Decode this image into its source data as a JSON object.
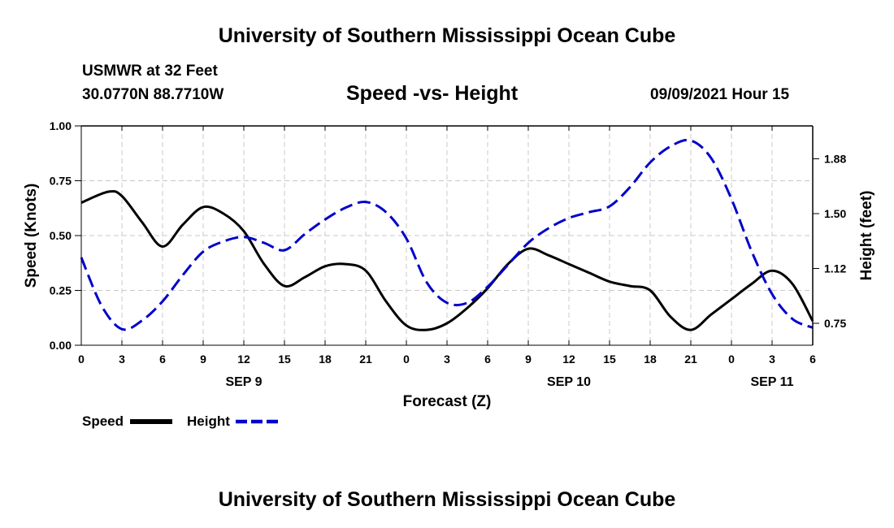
{
  "header": {
    "title_top": "University of Southern Mississippi Ocean Cube",
    "station": "USMWR at 32 Feet",
    "coords": "30.0770N  88.7710W",
    "datetime": "09/09/2021 Hour 15",
    "title_bottom": "University of Southern Mississippi Ocean Cube"
  },
  "legend": {
    "speed_label": "Speed",
    "height_label": "Height"
  },
  "colors": {
    "speed": "#000000",
    "height": "#0000cc",
    "grid": "#c8c8c8"
  },
  "chart_data": {
    "type": "line",
    "title": "Speed -vs- Height",
    "xlabel": "Forecast (Z)",
    "ylabel_left": "Speed (Knots)",
    "ylabel_right": "Height (feet)",
    "x_range": [
      0,
      54
    ],
    "x_tick_labels": [
      "0",
      "3",
      "6",
      "9",
      "12",
      "15",
      "18",
      "21",
      "0",
      "3",
      "6",
      "9",
      "12",
      "15",
      "18",
      "21",
      "0",
      "3",
      "6"
    ],
    "x_group_labels": [
      {
        "label": "SEP 9",
        "at": 12
      },
      {
        "label": "SEP 10",
        "at": 36
      },
      {
        "label": "SEP 11",
        "at": 51
      }
    ],
    "y_left": {
      "range": [
        0,
        1
      ],
      "ticks": [
        "0.00",
        "0.25",
        "0.50",
        "0.75",
        "1.00"
      ]
    },
    "y_right": {
      "range": [
        0.6,
        2.1
      ],
      "ticks": [
        "0.75",
        "1.12",
        "1.50",
        "1.88"
      ],
      "tick_values": [
        0.75,
        1.125,
        1.5,
        1.875
      ]
    },
    "grid": true,
    "series": [
      {
        "name": "Speed",
        "axis": "left",
        "style": "solid",
        "x": [
          0,
          2,
          3,
          4.5,
          6,
          7.5,
          9,
          10.5,
          12,
          13.5,
          15,
          16.5,
          18,
          19.5,
          21,
          22.5,
          24,
          25.5,
          27,
          28.5,
          30,
          31.5,
          33,
          34.5,
          36,
          37.5,
          39,
          40.5,
          42,
          43.5,
          45,
          46.5,
          48,
          49.5,
          51,
          52.5,
          54
        ],
        "values": [
          0.65,
          0.7,
          0.68,
          0.56,
          0.45,
          0.55,
          0.63,
          0.6,
          0.52,
          0.37,
          0.27,
          0.31,
          0.36,
          0.37,
          0.34,
          0.2,
          0.09,
          0.07,
          0.1,
          0.17,
          0.26,
          0.37,
          0.44,
          0.41,
          0.37,
          0.33,
          0.29,
          0.27,
          0.25,
          0.13,
          0.07,
          0.14,
          0.21,
          0.28,
          0.34,
          0.28,
          0.11
        ]
      },
      {
        "name": "Height",
        "axis": "right",
        "style": "dashed",
        "x": [
          0,
          1.5,
          3,
          4.5,
          6,
          7.5,
          9,
          10.5,
          12,
          13.5,
          15,
          16.5,
          18,
          19.5,
          21,
          22.5,
          24,
          25.5,
          27,
          28.5,
          30,
          31.5,
          33,
          34.5,
          36,
          37.5,
          39,
          40.5,
          42,
          43.5,
          45,
          46.5,
          48,
          49.5,
          51,
          52.5,
          54
        ],
        "values": [
          1.2,
          0.87,
          0.71,
          0.77,
          0.9,
          1.08,
          1.24,
          1.31,
          1.34,
          1.3,
          1.25,
          1.36,
          1.46,
          1.54,
          1.58,
          1.51,
          1.33,
          1.03,
          0.89,
          0.89,
          1.0,
          1.15,
          1.3,
          1.4,
          1.47,
          1.51,
          1.55,
          1.68,
          1.85,
          1.96,
          2.0,
          1.88,
          1.6,
          1.24,
          0.95,
          0.78,
          0.72
        ]
      }
    ]
  }
}
